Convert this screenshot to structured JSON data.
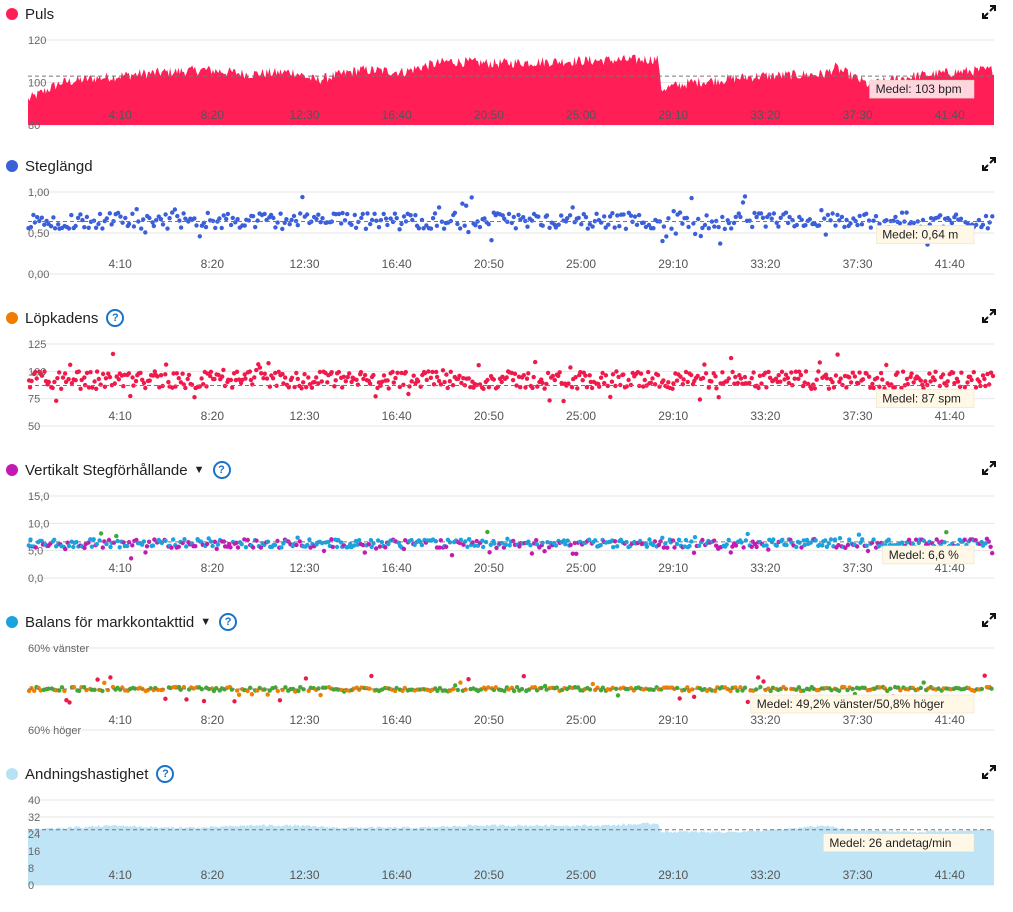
{
  "colors": {
    "puls": "#ff1e56",
    "steglangd": "#3a5fd9",
    "lopkadens": "#ef1a4a",
    "lopkadens_dot": "#f07d00",
    "vertikalt_dot": "#c21bb5",
    "balans_dot": "#19a3e0",
    "andning": "#bfe4f6",
    "andning_dot": "#b7e2f5",
    "purple": "#c21bb5",
    "blue": "#19a3e0",
    "green": "#3eaa2f",
    "orange": "#f08000",
    "red": "#ea1a4a",
    "help": "#1a73c9"
  },
  "x_ticks": [
    "4:10",
    "8:20",
    "12:30",
    "16:40",
    "20:50",
    "25:00",
    "29:10",
    "33:20",
    "37:30",
    "41:40"
  ],
  "panels": [
    {
      "title": "Puls",
      "dot_icon": "red-dot",
      "help": false,
      "dropdown": false
    },
    {
      "title": "Steglängd",
      "dot_icon": "blue-dot",
      "help": false,
      "dropdown": false
    },
    {
      "title": "Löpkadens",
      "dot_icon": "orange-dot",
      "help": true,
      "dropdown": false
    },
    {
      "title": "Vertikalt Stegförhållande",
      "dot_icon": "purple-dot",
      "help": true,
      "dropdown": true
    },
    {
      "title": "Balans för markkontakttid",
      "dot_icon": "cyan-dot",
      "help": true,
      "dropdown": true
    },
    {
      "title": "Andningshastighet",
      "dot_icon": "lightblue-dot",
      "help": true,
      "dropdown": false
    }
  ],
  "chart_data": [
    {
      "type": "area",
      "title": "Puls",
      "y_ticks": [
        "120",
        "100",
        "80"
      ],
      "ylim": [
        80,
        120
      ],
      "mean_label": "Medel: 103 bpm",
      "mean": 103,
      "x_range": [
        "0:00",
        "43:40"
      ],
      "y_profile": [
        [
          0,
          92
        ],
        [
          1.5,
          100
        ],
        [
          3,
          102
        ],
        [
          5,
          104
        ],
        [
          8,
          106
        ],
        [
          10,
          104
        ],
        [
          12,
          105
        ],
        [
          13,
          101
        ],
        [
          15,
          106
        ],
        [
          17,
          105
        ],
        [
          18,
          108
        ],
        [
          19,
          110
        ],
        [
          21,
          109
        ],
        [
          24,
          110
        ],
        [
          28.5,
          111
        ],
        [
          28.6,
          97
        ],
        [
          30,
          100
        ],
        [
          33,
          103
        ],
        [
          36,
          104
        ],
        [
          36.5,
          107
        ],
        [
          38,
          99
        ],
        [
          40,
          103
        ],
        [
          42,
          105
        ],
        [
          43.6,
          106
        ]
      ]
    },
    {
      "type": "scatter",
      "title": "Steglängd",
      "y_ticks": [
        "1,00",
        "0,50",
        "0,00"
      ],
      "ylim": [
        0,
        1.0
      ],
      "mean_label": "Medel: 0,64 m",
      "mean": 0.64,
      "base": 0.65,
      "spread": 0.1,
      "count": 430
    },
    {
      "type": "scatter",
      "title": "Löpkadens",
      "y_ticks": [
        "125",
        "100",
        "75",
        "50"
      ],
      "ylim": [
        50,
        125
      ],
      "mean_label": "Medel: 87 spm",
      "mean": 87,
      "base": 92,
      "spread": 8,
      "count": 560
    },
    {
      "type": "scatter",
      "title": "Vertikalt Stegförhållande",
      "y_ticks": [
        "15,0",
        "10,0",
        "5,0",
        "0,0"
      ],
      "ylim": [
        0,
        15
      ],
      "mean_label": "Medel: 6,6 %",
      "mean": 6.6,
      "base": 6.3,
      "spread": 0.8,
      "count": 520
    },
    {
      "type": "scatter",
      "title": "Balans för markkontakttid",
      "y_ticks": [
        "60% vänster",
        "60% höger"
      ],
      "ylim": [
        -60,
        60
      ],
      "mean_label": "Medel: 49,2% vänster/50,8% höger",
      "mean": 0,
      "base": 0,
      "spread": 3,
      "count": 380
    },
    {
      "type": "area",
      "title": "Andningshastighet",
      "y_ticks": [
        "40",
        "32",
        "24",
        "16",
        "8",
        "0"
      ],
      "ylim": [
        0,
        40
      ],
      "mean_label": "Medel: 26 andetag/min",
      "mean": 26,
      "x_range": [
        "0:00",
        "43:40"
      ],
      "y_profile": [
        [
          0,
          26
        ],
        [
          2,
          27
        ],
        [
          4,
          28
        ],
        [
          6,
          27
        ],
        [
          8,
          27
        ],
        [
          10,
          28
        ],
        [
          12,
          28
        ],
        [
          14,
          27
        ],
        [
          16,
          27
        ],
        [
          18,
          27
        ],
        [
          20,
          28
        ],
        [
          22,
          28
        ],
        [
          24,
          28
        ],
        [
          26,
          28
        ],
        [
          28.5,
          29
        ],
        [
          28.6,
          25
        ],
        [
          30,
          25
        ],
        [
          32,
          25
        ],
        [
          34,
          26
        ],
        [
          36,
          28
        ],
        [
          37,
          26
        ],
        [
          40,
          25
        ],
        [
          43.6,
          26
        ]
      ]
    }
  ]
}
